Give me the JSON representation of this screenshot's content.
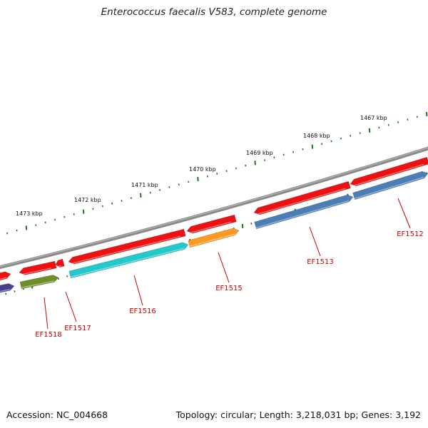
{
  "title": "Enterococcus faecalis V583, complete genome",
  "accession": "Accession: NC_004668",
  "topology": "Topology: circular; Length: 3,218,031 bp; Genes: 3,192",
  "ruler_labels": [
    "1467 kbp",
    "1468 kbp",
    "1469 kbp",
    "1470 kbp",
    "1471 kbp",
    "1472 kbp",
    "1473 kbp"
  ],
  "gene_labels": [
    "EF1512",
    "EF1513",
    "EF1515",
    "EF1516",
    "EF1517",
    "EF1518"
  ],
  "colors": {
    "backbone": "#7a7a7a",
    "ruler_tick": "#1a7a1a",
    "cds": "#ee1111",
    "label": "#cc0000",
    "steelblue": "#4a7fb5",
    "cyan": "#22c8cc",
    "orange": "#ff9922",
    "olive": "#6e8e2a",
    "purple": "#4a3f8e"
  }
}
